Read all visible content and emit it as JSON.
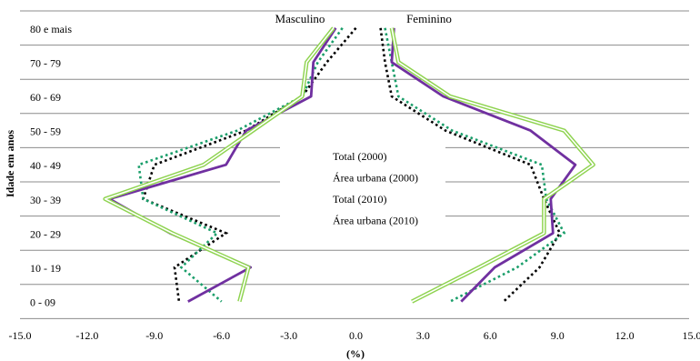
{
  "chart_data": {
    "type": "line",
    "xlabel": "(%)",
    "ylabel": "Idade em anos",
    "side_labels": {
      "left": "Masculino",
      "right": "Feminino"
    },
    "xlim": [
      -15,
      15
    ],
    "x_ticks": [
      "-15.0",
      "-12.0",
      "-9.0",
      "-6.0",
      "-3.0",
      "0.0",
      "3.0",
      "6.0",
      "9.0",
      "12.0",
      "15.0"
    ],
    "categories": [
      "80 e mais",
      "70 - 79",
      "60 - 69",
      "50 - 59",
      "40 - 49",
      "30 - 39",
      "20 - 29",
      "10 - 19",
      "0 - 09"
    ],
    "legend_position": "center",
    "grid": "horizontal",
    "series": [
      {
        "name": "Total (2000)",
        "style": "dotted",
        "color": "#000000",
        "male": [
          0.0,
          -1.3,
          -2.4,
          -4.9,
          -9.0,
          -9.5,
          -5.8,
          -8.1,
          -7.9
        ],
        "female": [
          1.1,
          1.3,
          1.6,
          4.0,
          7.8,
          8.4,
          9.1,
          8.2,
          6.6
        ]
      },
      {
        "name": "Área urbana (2000)",
        "style": "dotted",
        "color": "#1a9e6a",
        "male": [
          -0.6,
          -1.7,
          -2.4,
          -5.3,
          -9.7,
          -9.5,
          -6.2,
          -7.8,
          -6.0
        ],
        "female": [
          1.3,
          1.6,
          1.9,
          4.3,
          8.3,
          8.5,
          9.3,
          7.2,
          4.2
        ]
      },
      {
        "name": "Total (2010)",
        "style": "solid",
        "color": "#7030a0",
        "male": [
          -0.9,
          -1.9,
          -2.0,
          -4.9,
          -5.8,
          -11.0,
          -8.3,
          -4.7,
          -7.5
        ],
        "female": [
          1.7,
          1.6,
          3.9,
          7.8,
          9.8,
          8.7,
          8.8,
          6.2,
          4.7
        ]
      },
      {
        "name": "Área urbana (2010)",
        "style": "double",
        "color": "#8ed34f",
        "male": [
          -1.0,
          -2.2,
          -2.4,
          -4.6,
          -6.8,
          -11.2,
          -8.2,
          -4.8,
          -5.2
        ],
        "female": [
          1.6,
          1.9,
          4.2,
          9.3,
          10.6,
          8.4,
          8.4,
          5.5,
          2.5
        ]
      }
    ]
  }
}
